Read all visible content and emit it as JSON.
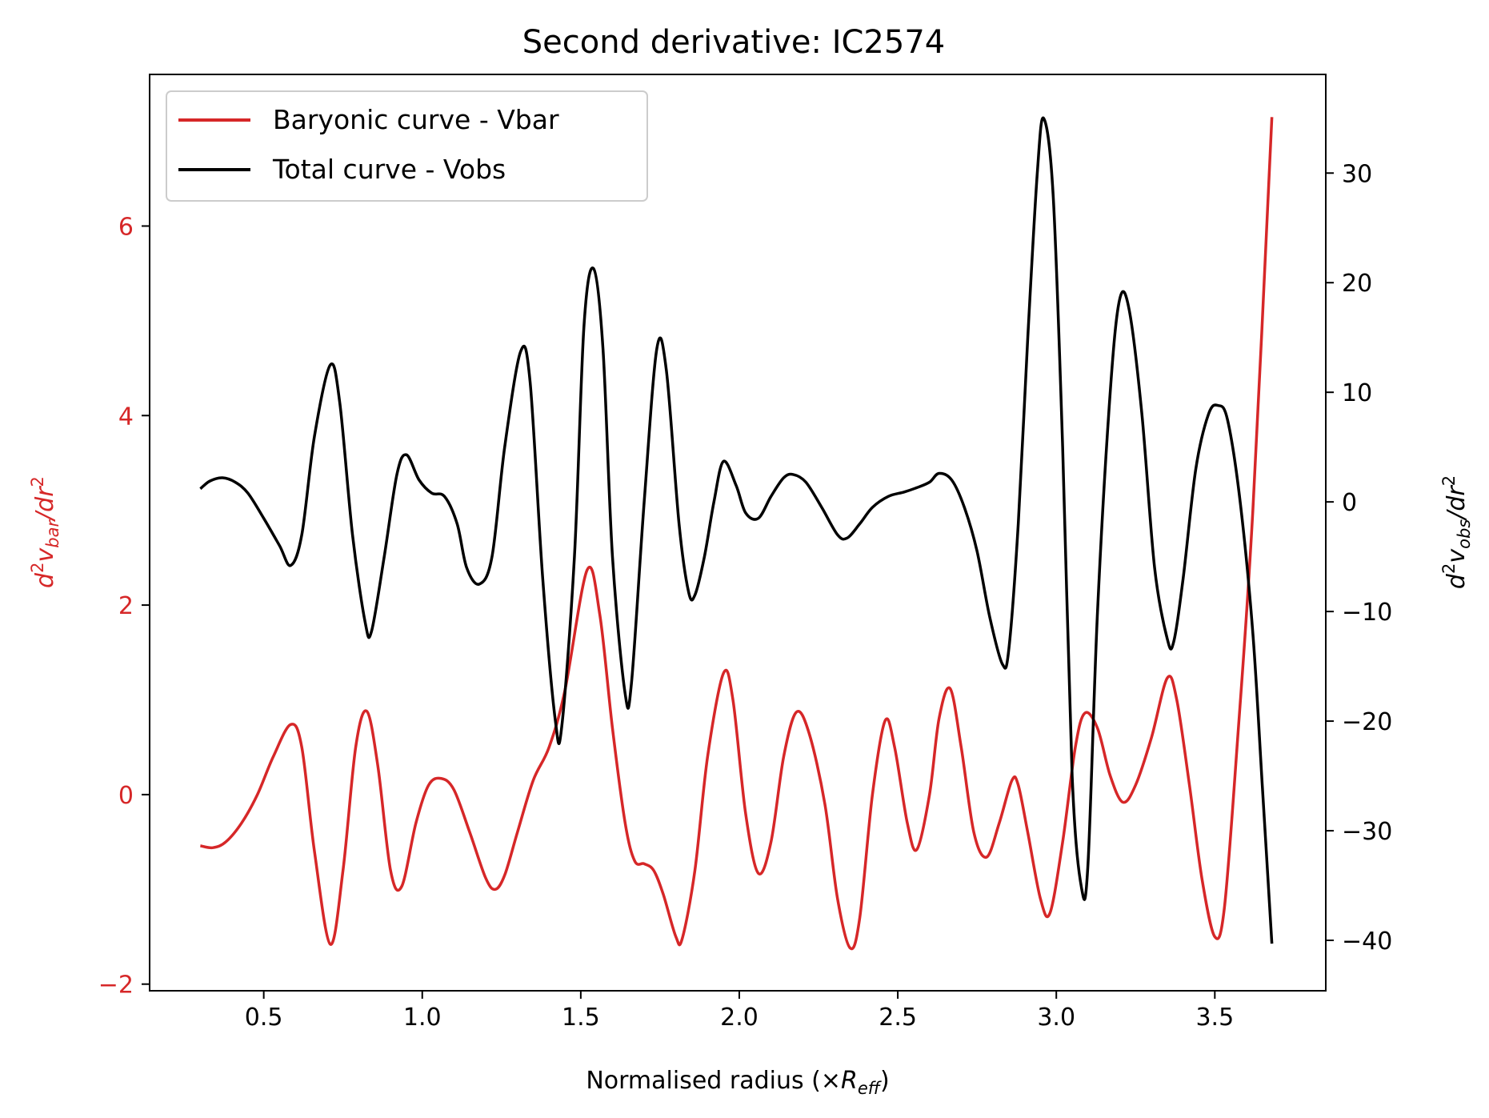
{
  "chart_data": {
    "type": "line",
    "title": "Second derivative: IC2574",
    "xlabel": {
      "main": "Normalised radius (×",
      "italic": "R",
      "sub": "eff",
      "close": ")"
    },
    "ylabel_left": {
      "a": "d",
      "a_sup": "2",
      "b": "v",
      "b_sub": "bar",
      "c": "/dr",
      "c_sup": "2"
    },
    "ylabel_right": {
      "a": "d",
      "a_sup": "2",
      "b": "v",
      "b_sub": "obs",
      "c": "/dr",
      "c_sup": "2"
    },
    "xlim": [
      0.14,
      3.85
    ],
    "ylim_left": [
      -2.07,
      7.6
    ],
    "ylim_right": [
      -44.6,
      39.0
    ],
    "xticks": [
      0.5,
      1.0,
      1.5,
      2.0,
      2.5,
      3.0,
      3.5
    ],
    "xtick_labels": [
      "0.5",
      "1.0",
      "1.5",
      "2.0",
      "2.5",
      "3.0",
      "3.5"
    ],
    "yticks_left": [
      -2,
      0,
      2,
      4,
      6
    ],
    "ytick_labels_left": [
      "−2",
      "0",
      "2",
      "4",
      "6"
    ],
    "yticks_right": [
      -40,
      -30,
      -20,
      -10,
      0,
      10,
      20,
      30
    ],
    "ytick_labels_right": [
      "−40",
      "−30",
      "−20",
      "−10",
      "0",
      "10",
      "20",
      "30"
    ],
    "legend": {
      "placement": "top-left"
    },
    "colors": {
      "left_axis": "#d62728",
      "right_axis": "#000000"
    },
    "series": [
      {
        "name": "Baryonic curve - Vbar",
        "axis": "left",
        "color": "#d62728",
        "points": [
          [
            0.3,
            -0.54
          ],
          [
            0.34,
            -0.56
          ],
          [
            0.38,
            -0.5
          ],
          [
            0.43,
            -0.3
          ],
          [
            0.48,
            0.0
          ],
          [
            0.53,
            0.4
          ],
          [
            0.585,
            0.74
          ],
          [
            0.62,
            0.5
          ],
          [
            0.66,
            -0.6
          ],
          [
            0.71,
            -1.58
          ],
          [
            0.75,
            -0.8
          ],
          [
            0.79,
            0.5
          ],
          [
            0.825,
            0.88
          ],
          [
            0.86,
            0.3
          ],
          [
            0.9,
            -0.8
          ],
          [
            0.935,
            -0.97
          ],
          [
            0.98,
            -0.3
          ],
          [
            1.02,
            0.1
          ],
          [
            1.06,
            0.17
          ],
          [
            1.1,
            0.05
          ],
          [
            1.15,
            -0.4
          ],
          [
            1.2,
            -0.88
          ],
          [
            1.23,
            -1.0
          ],
          [
            1.26,
            -0.85
          ],
          [
            1.3,
            -0.4
          ],
          [
            1.35,
            0.15
          ],
          [
            1.4,
            0.5
          ],
          [
            1.45,
            1.1
          ],
          [
            1.52,
            2.37
          ],
          [
            1.56,
            1.9
          ],
          [
            1.6,
            0.7
          ],
          [
            1.64,
            -0.3
          ],
          [
            1.67,
            -0.7
          ],
          [
            1.7,
            -0.73
          ],
          [
            1.73,
            -0.8
          ],
          [
            1.76,
            -1.05
          ],
          [
            1.8,
            -1.5
          ],
          [
            1.82,
            -1.52
          ],
          [
            1.86,
            -0.8
          ],
          [
            1.9,
            0.4
          ],
          [
            1.95,
            1.28
          ],
          [
            1.98,
            1.0
          ],
          [
            2.02,
            -0.2
          ],
          [
            2.06,
            -0.83
          ],
          [
            2.1,
            -0.5
          ],
          [
            2.14,
            0.4
          ],
          [
            2.18,
            0.87
          ],
          [
            2.22,
            0.65
          ],
          [
            2.27,
            -0.1
          ],
          [
            2.31,
            -1.1
          ],
          [
            2.35,
            -1.62
          ],
          [
            2.38,
            -1.3
          ],
          [
            2.42,
            0.0
          ],
          [
            2.46,
            0.78
          ],
          [
            2.49,
            0.5
          ],
          [
            2.53,
            -0.3
          ],
          [
            2.56,
            -0.58
          ],
          [
            2.6,
            0.0
          ],
          [
            2.63,
            0.8
          ],
          [
            2.665,
            1.12
          ],
          [
            2.7,
            0.5
          ],
          [
            2.74,
            -0.4
          ],
          [
            2.78,
            -0.66
          ],
          [
            2.82,
            -0.3
          ],
          [
            2.86,
            0.15
          ],
          [
            2.88,
            0.1
          ],
          [
            2.91,
            -0.4
          ],
          [
            2.95,
            -1.1
          ],
          [
            2.98,
            -1.25
          ],
          [
            3.02,
            -0.5
          ],
          [
            3.06,
            0.5
          ],
          [
            3.09,
            0.86
          ],
          [
            3.13,
            0.7
          ],
          [
            3.17,
            0.2
          ],
          [
            3.21,
            -0.08
          ],
          [
            3.25,
            0.1
          ],
          [
            3.3,
            0.6
          ],
          [
            3.35,
            1.23
          ],
          [
            3.38,
            1.0
          ],
          [
            3.42,
            0.1
          ],
          [
            3.46,
            -0.9
          ],
          [
            3.5,
            -1.5
          ],
          [
            3.53,
            -1.2
          ],
          [
            3.57,
            0.5
          ],
          [
            3.62,
            3.0
          ],
          [
            3.68,
            7.15
          ]
        ]
      },
      {
        "name": "Total curve - Vobs",
        "axis": "right",
        "color": "#000000",
        "points": [
          [
            0.3,
            1.2
          ],
          [
            0.33,
            1.9
          ],
          [
            0.37,
            2.2
          ],
          [
            0.41,
            1.8
          ],
          [
            0.45,
            0.8
          ],
          [
            0.5,
            -1.5
          ],
          [
            0.55,
            -4.0
          ],
          [
            0.585,
            -5.8
          ],
          [
            0.62,
            -3.0
          ],
          [
            0.66,
            6.0
          ],
          [
            0.71,
            12.5
          ],
          [
            0.74,
            9.0
          ],
          [
            0.78,
            -3.0
          ],
          [
            0.82,
            -11.0
          ],
          [
            0.84,
            -11.8
          ],
          [
            0.88,
            -5.0
          ],
          [
            0.92,
            2.5
          ],
          [
            0.95,
            4.3
          ],
          [
            0.99,
            2.0
          ],
          [
            1.03,
            0.8
          ],
          [
            1.07,
            0.5
          ],
          [
            1.11,
            -2.0
          ],
          [
            1.14,
            -6.0
          ],
          [
            1.18,
            -7.5
          ],
          [
            1.22,
            -5.0
          ],
          [
            1.26,
            5.0
          ],
          [
            1.31,
            13.7
          ],
          [
            1.34,
            11.0
          ],
          [
            1.38,
            -7.0
          ],
          [
            1.42,
            -20.0
          ],
          [
            1.44,
            -20.5
          ],
          [
            1.48,
            -5.0
          ],
          [
            1.51,
            16.0
          ],
          [
            1.54,
            21.3
          ],
          [
            1.57,
            14.0
          ],
          [
            1.6,
            -5.0
          ],
          [
            1.64,
            -17.5
          ],
          [
            1.66,
            -16.5
          ],
          [
            1.7,
            0.0
          ],
          [
            1.74,
            14.0
          ],
          [
            1.77,
            12.0
          ],
          [
            1.81,
            -2.0
          ],
          [
            1.84,
            -8.2
          ],
          [
            1.86,
            -8.5
          ],
          [
            1.89,
            -5.0
          ],
          [
            1.92,
            0.0
          ],
          [
            1.95,
            3.7
          ],
          [
            1.99,
            1.5
          ],
          [
            2.02,
            -1.0
          ],
          [
            2.06,
            -1.5
          ],
          [
            2.1,
            0.5
          ],
          [
            2.14,
            2.2
          ],
          [
            2.17,
            2.5
          ],
          [
            2.21,
            1.8
          ],
          [
            2.26,
            -0.5
          ],
          [
            2.31,
            -3.0
          ],
          [
            2.34,
            -3.3
          ],
          [
            2.38,
            -2.0
          ],
          [
            2.42,
            -0.5
          ],
          [
            2.47,
            0.5
          ],
          [
            2.52,
            0.9
          ],
          [
            2.56,
            1.3
          ],
          [
            2.6,
            1.8
          ],
          [
            2.63,
            2.6
          ],
          [
            2.67,
            2.0
          ],
          [
            2.71,
            -0.5
          ],
          [
            2.75,
            -4.5
          ],
          [
            2.79,
            -10.5
          ],
          [
            2.83,
            -14.8
          ],
          [
            2.85,
            -13.5
          ],
          [
            2.88,
            -2.0
          ],
          [
            2.91,
            15.0
          ],
          [
            2.94,
            30.0
          ],
          [
            2.96,
            35.0
          ],
          [
            2.99,
            28.0
          ],
          [
            3.02,
            5.0
          ],
          [
            3.05,
            -25.0
          ],
          [
            3.08,
            -35.3
          ],
          [
            3.1,
            -33.0
          ],
          [
            3.13,
            -10.0
          ],
          [
            3.17,
            10.0
          ],
          [
            3.2,
            18.5
          ],
          [
            3.23,
            17.5
          ],
          [
            3.27,
            8.0
          ],
          [
            3.31,
            -6.0
          ],
          [
            3.35,
            -12.5
          ],
          [
            3.37,
            -12.8
          ],
          [
            3.4,
            -7.0
          ],
          [
            3.44,
            3.0
          ],
          [
            3.48,
            8.0
          ],
          [
            3.51,
            8.8
          ],
          [
            3.54,
            7.5
          ],
          [
            3.58,
            0.0
          ],
          [
            3.62,
            -12.0
          ],
          [
            3.65,
            -26.0
          ],
          [
            3.68,
            -40.3
          ]
        ]
      }
    ]
  }
}
